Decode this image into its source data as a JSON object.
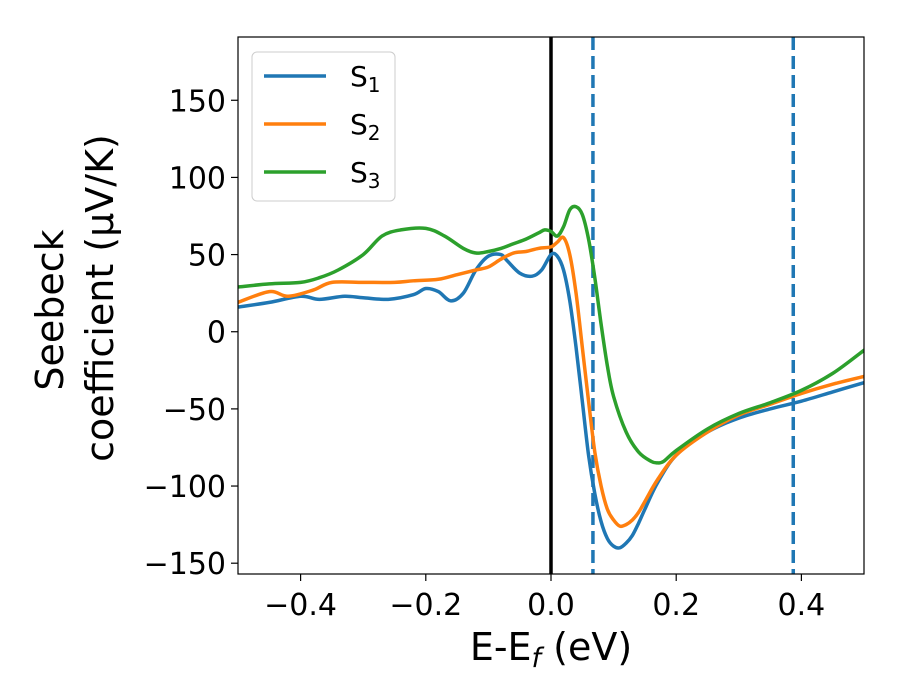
{
  "chart_data": {
    "type": "line",
    "xlabel": {
      "main": "E-E",
      "sub": "f",
      "unit": " (eV)"
    },
    "ylabel": {
      "line1": "Seebeck",
      "line2": "coefficient  (μV/K)"
    },
    "xlim": [
      -0.5,
      0.5
    ],
    "ylim": [
      -157,
      191
    ],
    "xticks": [
      -0.4,
      -0.2,
      0.0,
      0.2,
      0.4
    ],
    "xtick_labels": [
      "−0.4",
      "−0.2",
      "0.0",
      "0.2",
      "0.4"
    ],
    "yticks": [
      -150,
      -100,
      -50,
      0,
      50,
      100,
      150
    ],
    "ytick_labels": [
      "−150",
      "−100",
      "−50",
      "0",
      "50",
      "100",
      "150"
    ],
    "grid": false,
    "legend_position": "top-left",
    "vertical_lines": [
      {
        "x": 0.0,
        "style": "solid",
        "color": "#000000"
      },
      {
        "x": 0.067,
        "style": "dashed",
        "color": "#1f77b4"
      },
      {
        "x": 0.387,
        "style": "dashed",
        "color": "#1f77b4"
      }
    ],
    "series": [
      {
        "name": "S",
        "sub": "1",
        "color": "#1f77b4",
        "x": [
          -0.5,
          -0.45,
          -0.4,
          -0.37,
          -0.33,
          -0.3,
          -0.26,
          -0.22,
          -0.2,
          -0.18,
          -0.16,
          -0.14,
          -0.12,
          -0.1,
          -0.08,
          -0.07,
          -0.05,
          -0.03,
          -0.015,
          0.0,
          0.01,
          0.02,
          0.03,
          0.04,
          0.05,
          0.06,
          0.07,
          0.08,
          0.09,
          0.1,
          0.11,
          0.12,
          0.13,
          0.14,
          0.15,
          0.17,
          0.2,
          0.25,
          0.3,
          0.35,
          0.4,
          0.45,
          0.5
        ],
        "y": [
          16,
          19,
          23,
          21,
          23,
          22,
          21,
          24,
          28,
          26,
          20,
          25,
          40,
          49,
          50,
          46,
          38,
          36,
          40,
          50,
          49,
          40,
          20,
          -10,
          -45,
          -80,
          -105,
          -123,
          -134,
          -139,
          -140,
          -137,
          -132,
          -124,
          -115,
          -98,
          -80,
          -65,
          -56,
          -50,
          -45,
          -39,
          -33
        ]
      },
      {
        "name": "S",
        "sub": "2",
        "color": "#ff7f0e",
        "x": [
          -0.5,
          -0.45,
          -0.42,
          -0.38,
          -0.35,
          -0.3,
          -0.25,
          -0.22,
          -0.18,
          -0.15,
          -0.12,
          -0.1,
          -0.08,
          -0.06,
          -0.04,
          -0.02,
          0.0,
          0.01,
          0.02,
          0.03,
          0.04,
          0.05,
          0.06,
          0.07,
          0.08,
          0.09,
          0.1,
          0.11,
          0.12,
          0.13,
          0.14,
          0.15,
          0.17,
          0.2,
          0.25,
          0.3,
          0.35,
          0.4,
          0.45,
          0.5
        ],
        "y": [
          19,
          26,
          23,
          27,
          32,
          32,
          32,
          33,
          34,
          37,
          40,
          42,
          47,
          51,
          52,
          54,
          55,
          58,
          61,
          50,
          25,
          -10,
          -45,
          -78,
          -100,
          -115,
          -122,
          -126,
          -125,
          -122,
          -117,
          -110,
          -96,
          -80,
          -65,
          -54,
          -47,
          -40,
          -34,
          -29
        ]
      },
      {
        "name": "S",
        "sub": "3",
        "color": "#2ca02c",
        "x": [
          -0.5,
          -0.45,
          -0.4,
          -0.37,
          -0.34,
          -0.3,
          -0.27,
          -0.24,
          -0.2,
          -0.17,
          -0.14,
          -0.12,
          -0.1,
          -0.08,
          -0.06,
          -0.04,
          -0.02,
          -0.01,
          0.0,
          0.01,
          0.02,
          0.03,
          0.04,
          0.05,
          0.06,
          0.07,
          0.08,
          0.09,
          0.1,
          0.12,
          0.14,
          0.16,
          0.17,
          0.18,
          0.2,
          0.25,
          0.3,
          0.35,
          0.4,
          0.45,
          0.5
        ],
        "y": [
          29,
          31,
          32,
          35,
          40,
          50,
          62,
          66,
          67,
          62,
          54,
          51,
          52,
          54,
          57,
          60,
          64,
          66,
          65,
          62,
          68,
          79,
          81,
          76,
          60,
          35,
          5,
          -22,
          -42,
          -65,
          -78,
          -84,
          -85,
          -84,
          -77,
          -63,
          -53,
          -46,
          -38,
          -27,
          -12
        ]
      }
    ]
  }
}
